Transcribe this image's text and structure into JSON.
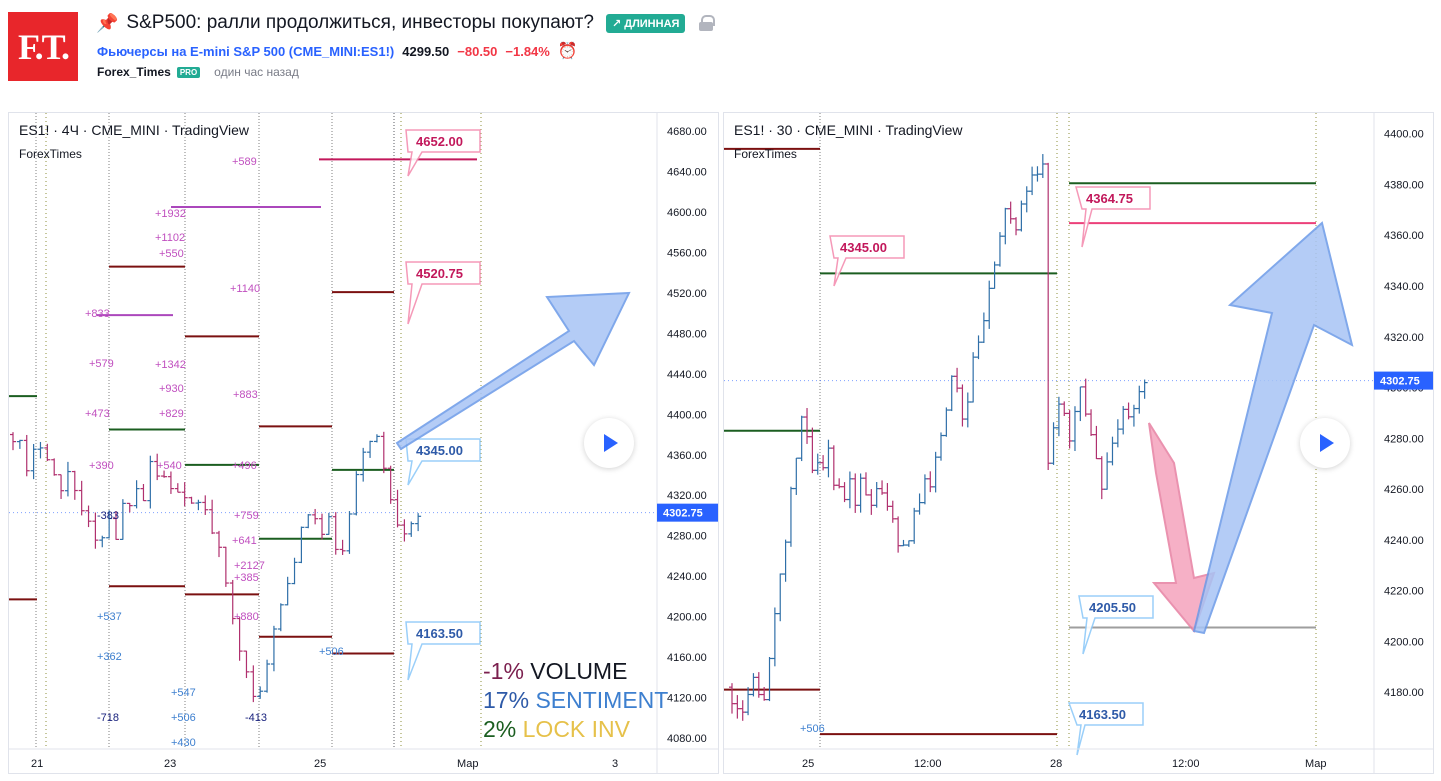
{
  "header": {
    "logo_text": "F.T.",
    "pin_icon": "pin-icon",
    "title": "S&P500: ралли продолжиться, инвесторы покупают?",
    "badge": "↗ ДЛИННАЯ",
    "symbol_prefix": "Фьючерсы на E-mini S&P 500 (",
    "symbol_ticker": "CME_MINI:ES1!",
    "symbol_suffix": ")",
    "price": "4299.50",
    "change": "−80.50",
    "change_pct": "−1.84%",
    "author": "Forex_Times",
    "pro_badge": "PRO",
    "time_ago": "один час назад"
  },
  "left_chart": {
    "title": "ES1! · 4Ч · CME_MINI · TradingView",
    "subtitle": "ForexTimes",
    "last_price": "4302.75",
    "legend": [
      {
        "pct": "-1%",
        "label": "VOLUME",
        "pct_color": "#7b1f4e",
        "label_color": "#131722"
      },
      {
        "pct": "17%",
        "label": "SENTIMENT",
        "pct_color": "#2e5aa8",
        "label_color": "#3d7fcf"
      },
      {
        "pct": "2%",
        "label": "LOCK INV",
        "pct_color": "#1b5e20",
        "label_color": "#e6c14a"
      }
    ]
  },
  "right_chart": {
    "title": "ES1! · 30 · CME_MINI · TradingView",
    "subtitle": "ForexTimes",
    "last_price": "4302.75"
  },
  "chart_data": [
    {
      "type": "candlestick",
      "title": "ES1! · 4Ч · CME_MINI · TradingView",
      "x_ticks": [
        "21",
        "23",
        "25",
        "Мар",
        "3"
      ],
      "y_ticks": [
        "4680.00",
        "4640.00",
        "4600.00",
        "4560.00",
        "4520.00",
        "4480.00",
        "4440.00",
        "4400.00",
        "4360.00",
        "4320.00",
        "4280.00",
        "4240.00",
        "4200.00",
        "4160.00",
        "4120.00",
        "4080.00"
      ],
      "ylim": [
        4075,
        4690
      ],
      "last_price": 4302.75,
      "callout_labels": [
        "4652.00",
        "4520.75",
        "4345.00",
        "4163.50"
      ],
      "level_annotations": [
        "+589",
        "+1932",
        "+1102",
        "+550",
        "+1140",
        "+833",
        "+579",
        "+1342",
        "+930",
        "+883",
        "+473",
        "+829",
        "+390",
        "+540",
        "+496",
        "-383",
        "+759",
        "+641",
        "+2127",
        "+385",
        "+880",
        "+537",
        "+362",
        "+506",
        "+547",
        "+506",
        "-718",
        "-413",
        "+430"
      ],
      "levels": [
        {
          "value": 4652,
          "color": "#c2185b"
        },
        {
          "value": 4605,
          "color": "#ab47bc"
        },
        {
          "value": 4546,
          "color": "#7b1010"
        },
        {
          "value": 4520.75,
          "color": "#7b1010"
        },
        {
          "value": 4498,
          "color": "#ab47bc"
        },
        {
          "value": 4477,
          "color": "#7b1010"
        },
        {
          "value": 4418,
          "color": "#1b5e20"
        },
        {
          "value": 4388,
          "color": "#7b1010"
        },
        {
          "value": 4385,
          "color": "#1b5e20"
        },
        {
          "value": 4350,
          "color": "#1b5e20"
        },
        {
          "value": 4345,
          "color": "#1b5e20"
        },
        {
          "value": 4277,
          "color": "#1b5e20"
        },
        {
          "value": 4230,
          "color": "#7b1010"
        },
        {
          "value": 4222,
          "color": "#7b1010"
        },
        {
          "value": 4217,
          "color": "#7b1010"
        },
        {
          "value": 4180,
          "color": "#7b1010"
        },
        {
          "value": 4163.5,
          "color": "#7b1010"
        }
      ]
    },
    {
      "type": "candlestick",
      "title": "ES1! · 30 · CME_MINI · TradingView",
      "x_ticks": [
        "25",
        "12:00",
        "28",
        "12:00",
        "Мар"
      ],
      "y_ticks": [
        "4400.00",
        "4380.00",
        "4360.00",
        "4340.00",
        "4320.00",
        "4300.00",
        "4280.00",
        "4260.00",
        "4240.00",
        "4220.00",
        "4200.00",
        "4180.00"
      ],
      "ylim": [
        4160,
        4405
      ],
      "last_price": 4302.75,
      "callout_labels": [
        "4364.75",
        "4345.00",
        "4205.50",
        "4163.50"
      ],
      "level_annotations": [
        "+506"
      ],
      "levels": [
        {
          "value": 4394,
          "color": "#7b1010"
        },
        {
          "value": 4380.5,
          "color": "#1b5e20"
        },
        {
          "value": 4364.75,
          "color": "#ec407a"
        },
        {
          "value": 4345,
          "color": "#1b5e20"
        },
        {
          "value": 4283,
          "color": "#1b5e20"
        },
        {
          "value": 4205.5,
          "color": "#9e9e9e"
        },
        {
          "value": 4181,
          "color": "#7b1010"
        },
        {
          "value": 4163.5,
          "color": "#7b1010"
        }
      ]
    }
  ]
}
